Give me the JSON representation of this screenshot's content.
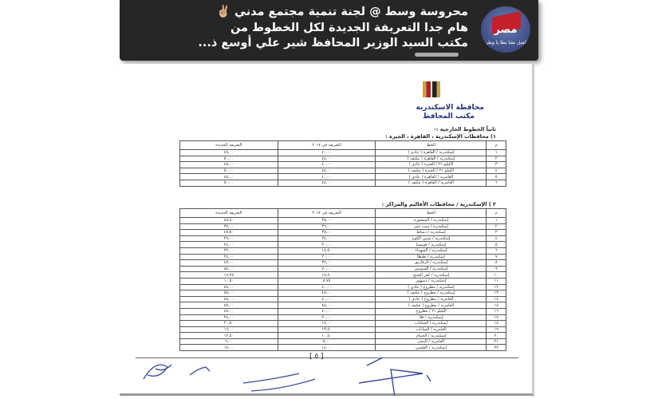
{
  "post": {
    "author_avatar_text": "مصر",
    "author_avatar_sub": "كفيل نشا بطا يا وطن",
    "lines": [
      "محروسة وسط @ لجنة تنمية مجتمع مدني ✌🏼",
      "هام جدا التعريفة الجديدة لكل الخطوط  من",
      "مكتب السيد الوزير المحافظ شير علي أوسع ذ..."
    ]
  },
  "document": {
    "gov_title": "محافظة الاسكندرية",
    "office": "مكتب المحافظ",
    "section": "ثانياً الخطوط الخارجية :-",
    "table1": {
      "caption": "١) محافظات الإسكندرية ، القاهرة ، الجيزة :",
      "headers": [
        "م",
        "الخط",
        "التعريفة في ٢٠١٧",
        "التعريفة الجديدة"
      ],
      "rows": [
        [
          "١",
          "إسكندرية / القاهرة ( عادي )",
          "٤٠,٠٠",
          "٤٨,٠٠"
        ],
        [
          "٢",
          "إسكندرية / القاهرة ( مكيف )",
          "٤٤,٠٠",
          "٥٠,٠٠"
        ],
        [
          "٣",
          "الكيلو ٢١ / الجيزة ( عادي )",
          "٤٠,٠٠",
          "٤٨,٠٠"
        ],
        [
          "٤",
          "الكيلو ٢١ / الجيزة ( مكيف )",
          "٤٤,٠٠",
          "٥٠,٠٠"
        ],
        [
          "٥",
          "العامرية / القاهرة ( عادي )",
          "٤٠,٠٠",
          "٤٨,٠٠"
        ],
        [
          "٦",
          "العامرية / القاهرة ( مكيف )",
          "٤٤,٠٠",
          "٥٠,٠٠"
        ]
      ]
    },
    "table2": {
      "caption": "٢ ) الإسكندرية / محافظات الأقاليم والمراكز :",
      "headers": [
        "م",
        "الخط",
        "التعريفة في ٢٠١٧",
        "التعريفة الجديدة"
      ],
      "rows": [
        [
          "١",
          "إسكندرية / المنصورة",
          "٣٨,٠٠",
          "٤٥,٥٠"
        ],
        [
          "٢",
          "إسكندرية / ميت غمر",
          "٣٦,٠٠",
          "٣٧,٠٠"
        ],
        [
          "٣",
          "إسكندرية / دمياط",
          "٣٨,٠٠",
          "٤٥,٥٠"
        ],
        [
          "٤",
          "إسكندرية / شبين الكوم",
          "٢٤,٠٠",
          "٢٩,٠٠"
        ],
        [
          "٥",
          "إسكندرية / قويسنا",
          "٢٠,٠٠",
          "٢٤,٠٠"
        ],
        [
          "٦",
          "إسكندرية / الشهداء",
          "١٨,٥٠",
          "٢٢,٠٠"
        ],
        [
          "٧",
          "إسكندرية / طنطا",
          "٢٠,٠٠",
          "٢٤,٠٠"
        ],
        [
          "٨",
          "إسكندرية / الزقازيق",
          "٣٩,٠٠",
          "٤٧,٠٠"
        ],
        [
          "٩",
          "إسكندرية / السويس",
          "٧٠,٠٠",
          "٨٤,٠٠"
        ],
        [
          "١٠",
          "إسكندرية / كفر الشيخ",
          "١٧,٥٠",
          "١٩,٢٥"
        ],
        [
          "١١",
          "إسكندرية / دمنهور",
          "٨,٧٥",
          "١٠,٥٠"
        ],
        [
          "١٢",
          "إسكندرية / مطروح ( عادي )",
          "٤٠,٠٠",
          "٤٨,٠٠"
        ],
        [
          "١٣",
          "إسكندرية / مطروح ( مكيف )",
          "٤٥,٠٠",
          "٥٥,٠٠"
        ],
        [
          "١٤",
          "العامرية / مطروح ( عادي )",
          "٤٠,٠٠",
          "٤٨,٠٠"
        ],
        [
          "١٥",
          "العامرية / مطروح ( مكيف )",
          "٤٥,٠٠",
          "٥٥,٠٠"
        ],
        [
          "١٦",
          "الكيلو ٢١ / مطروح",
          "٤٠,٠٠",
          "٤٨,٠٠"
        ],
        [
          "١٧",
          "إسكندرية / قلا",
          "٢٠,٠٠",
          "٢٤,٠٠"
        ],
        [
          "١٨",
          "إسكندرية / السادات",
          "١٧,٠٠",
          "٢٠,٥٠"
        ],
        [
          "١٩",
          "العامرية / السادات",
          "١٣,٥٠",
          "١٦,٠٠"
        ],
        [
          "٢٠",
          "إسكندرية / الحمام",
          "١٠,٥٠",
          "١٢,٥٠"
        ],
        [
          "٢١",
          "العامرية / البنجر",
          "٥,٠٠",
          "٦,٠٠"
        ],
        [
          "٢٢",
          "إسكندرية / العلمين",
          "١٤,٠٠",
          "١٧,٠٠"
        ]
      ]
    },
    "page_number": "[ ٥ ]"
  }
}
